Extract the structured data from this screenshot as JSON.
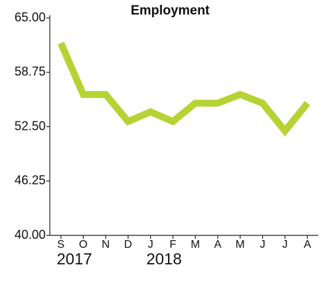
{
  "chart_data": {
    "type": "line",
    "title": "Employment",
    "categories": [
      "S",
      "O",
      "N",
      "D",
      "J",
      "F",
      "M",
      "A",
      "M",
      "J",
      "J",
      "A"
    ],
    "x_groups": [
      {
        "label": "2017",
        "start": 0
      },
      {
        "label": "2018",
        "start": 4
      }
    ],
    "series": [
      {
        "name": "Employment",
        "color": "#b5d334",
        "values": [
          62.1,
          56.2,
          56.2,
          53.1,
          54.2,
          53.1,
          55.2,
          55.2,
          56.2,
          55.2,
          52.0,
          55.2
        ]
      }
    ],
    "ylim": [
      40,
      65
    ],
    "yticks": [
      {
        "value": 40,
        "label": "40.00"
      },
      {
        "value": 46.25,
        "label": "46.25"
      },
      {
        "value": 52.5,
        "label": "52.50"
      },
      {
        "value": 58.75,
        "label": "58.75"
      },
      {
        "value": 65,
        "label": "65.00"
      }
    ],
    "grid": false
  }
}
